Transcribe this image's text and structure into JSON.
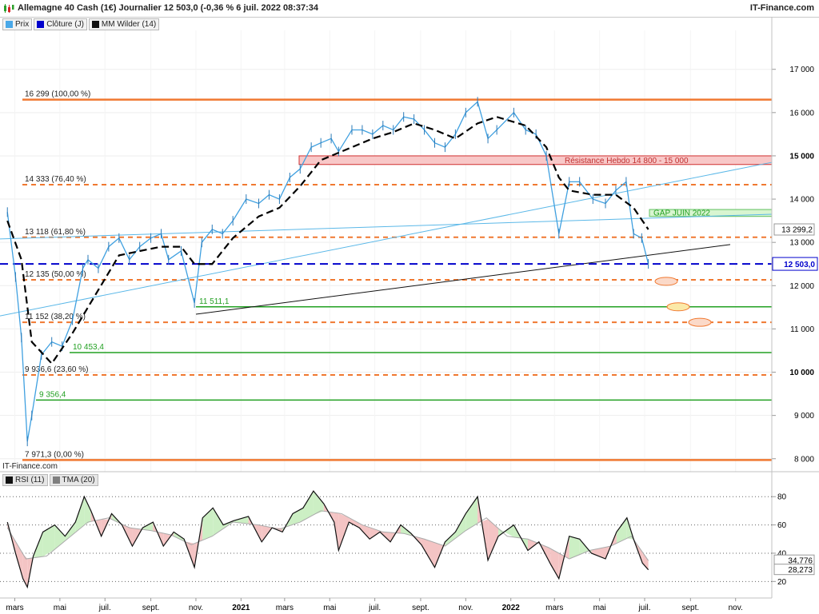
{
  "header": {
    "title": "Allemagne 40 Cash (1€) Journalier 12 503,0 (-0,36 % 6 juil. 2022 08:37:34",
    "brand": "IT-Finance.com"
  },
  "legend": [
    {
      "label": "Prix",
      "color": "#4aa8e8"
    },
    {
      "label": "Clôture (J)",
      "color": "#0000cc"
    },
    {
      "label": "MM Wilder (14)",
      "color": "#111111"
    }
  ],
  "watermark": "IT-Finance.com",
  "rsi_legend": [
    {
      "label": "RSI (11)",
      "color": "#111111"
    },
    {
      "label": "TMA (20)",
      "color": "#7f7f7f"
    }
  ],
  "colors": {
    "fib": "#f07830",
    "support": "#22a022",
    "close_line": "#0000cc",
    "trend": "#5bb8e8",
    "wilder": "#000000",
    "resistance_fill": "#f8c8c8",
    "gap_fill": "#d8f5d0"
  },
  "chart_data": [
    {
      "type": "line",
      "title": "Allemagne 40 Cash (1€) Journalier",
      "x_ticks": [
        "mars",
        "mai",
        "juil.",
        "sept.",
        "nov.",
        "2021",
        "mars",
        "mai",
        "juil.",
        "sept.",
        "nov.",
        "2022",
        "mars",
        "mai",
        "juil.",
        "sept.",
        "nov."
      ],
      "y_ticks": [
        8000,
        9000,
        10000,
        11000,
        12000,
        13000,
        14000,
        15000,
        16000,
        17000
      ],
      "ylim": [
        7700,
        17900
      ],
      "last_price": "12 503,0",
      "wilder_value": "13 299,2",
      "fibonacci_levels": [
        {
          "label": "16 299 (100,00 %)",
          "value": 16299
        },
        {
          "label": "14 333 (76,40 %)",
          "value": 14333
        },
        {
          "label": "13 118 (61,80 %)",
          "value": 13118
        },
        {
          "label": "12 135 (50,00 %)",
          "value": 12135
        },
        {
          "label": "11 152 (38,20 %)",
          "value": 11152
        },
        {
          "label": "9 936,6 (23,60 %)",
          "value": 9936.6
        },
        {
          "label": "7 971,3 (0,00 %)",
          "value": 7971.3
        }
      ],
      "support_levels": [
        {
          "label": "11 511,1",
          "value": 11511.1
        },
        {
          "label": "10 453,4",
          "value": 10453.4
        },
        {
          "label": "9 356,4",
          "value": 9356.4
        }
      ],
      "zones": [
        {
          "label": "Résistance Hebdo 14 800 - 15 000",
          "low": 14800,
          "high": 15000
        },
        {
          "label": "GAP JUIN 2022",
          "low": 13600,
          "high": 13760
        }
      ],
      "series": [
        {
          "name": "Prix",
          "dates": [
            "2020-02-20",
            "2020-03-02",
            "2020-03-10",
            "2020-03-18",
            "2020-03-24",
            "2020-04-06",
            "2020-04-20",
            "2020-05-04",
            "2020-05-18",
            "2020-06-01",
            "2020-06-08",
            "2020-06-22",
            "2020-07-06",
            "2020-07-20",
            "2020-08-03",
            "2020-08-17",
            "2020-09-01",
            "2020-09-15",
            "2020-09-25",
            "2020-10-12",
            "2020-10-30",
            "2020-11-09",
            "2020-11-23",
            "2020-12-07",
            "2020-12-21",
            "2021-01-08",
            "2021-01-25",
            "2021-02-08",
            "2021-02-22",
            "2021-03-08",
            "2021-03-22",
            "2021-04-06",
            "2021-04-19",
            "2021-05-03",
            "2021-05-13",
            "2021-05-31",
            "2021-06-14",
            "2021-06-28",
            "2021-07-12",
            "2021-07-26",
            "2021-08-09",
            "2021-08-23",
            "2021-09-06",
            "2021-09-20",
            "2021-10-04",
            "2021-10-18",
            "2021-11-01",
            "2021-11-17",
            "2021-12-01",
            "2021-12-13",
            "2022-01-05",
            "2022-01-21",
            "2022-02-04",
            "2022-02-18",
            "2022-03-07",
            "2022-03-21",
            "2022-04-04",
            "2022-04-22",
            "2022-05-09",
            "2022-05-23",
            "2022-06-06",
            "2022-06-16",
            "2022-06-27",
            "2022-07-06"
          ],
          "values": [
            13700,
            12200,
            10800,
            8400,
            9000,
            10400,
            10700,
            10600,
            11200,
            12400,
            12600,
            12400,
            12900,
            13100,
            12600,
            12900,
            13100,
            13200,
            12600,
            12800,
            11600,
            13000,
            13300,
            13200,
            13500,
            14000,
            13900,
            14100,
            14000,
            14500,
            14700,
            15200,
            15300,
            15400,
            15100,
            15600,
            15600,
            15500,
            15700,
            15600,
            15900,
            15850,
            15600,
            15300,
            15200,
            15500,
            16000,
            16250,
            15400,
            15600,
            16000,
            15600,
            15500,
            15000,
            13200,
            14400,
            14400,
            14000,
            13900,
            14200,
            14400,
            13200,
            13100,
            12503
          ]
        },
        {
          "name": "MM Wilder (14)",
          "dates": [
            "2020-02-20",
            "2020-03-10",
            "2020-03-24",
            "2020-04-20",
            "2020-05-18",
            "2020-06-22",
            "2020-07-20",
            "2020-08-17",
            "2020-09-15",
            "2020-10-12",
            "2020-10-30",
            "2020-11-23",
            "2020-12-21",
            "2021-01-25",
            "2021-02-22",
            "2021-03-22",
            "2021-04-19",
            "2021-05-31",
            "2021-06-28",
            "2021-07-26",
            "2021-08-23",
            "2021-09-20",
            "2021-10-18",
            "2021-11-17",
            "2021-12-13",
            "2022-01-21",
            "2022-02-18",
            "2022-03-07",
            "2022-03-21",
            "2022-04-22",
            "2022-05-23",
            "2022-06-16",
            "2022-07-06"
          ],
          "values": [
            13500,
            12600,
            10700,
            10200,
            10900,
            11900,
            12700,
            12800,
            12900,
            12900,
            12500,
            12500,
            13100,
            13600,
            13800,
            14300,
            14900,
            15200,
            15400,
            15550,
            15750,
            15600,
            15400,
            15750,
            15900,
            15700,
            15200,
            14500,
            14200,
            14100,
            14100,
            13800,
            13299
          ]
        }
      ]
    },
    {
      "type": "line",
      "title": "RSI (11)",
      "y_ticks": [
        20,
        40,
        60,
        80
      ],
      "ylim": [
        10,
        92
      ],
      "last_rsi": "28,273",
      "last_tma": "34,776",
      "series": [
        {
          "name": "RSI (11)",
          "dates": [
            "2020-02-20",
            "2020-03-02",
            "2020-03-12",
            "2020-03-18",
            "2020-03-26",
            "2020-04-08",
            "2020-04-24",
            "2020-05-08",
            "2020-05-22",
            "2020-06-03",
            "2020-06-12",
            "2020-06-26",
            "2020-07-10",
            "2020-07-24",
            "2020-08-07",
            "2020-08-21",
            "2020-09-04",
            "2020-09-18",
            "2020-10-02",
            "2020-10-16",
            "2020-10-30",
            "2020-11-10",
            "2020-11-24",
            "2020-12-08",
            "2020-12-22",
            "2021-01-11",
            "2021-01-29",
            "2021-02-12",
            "2021-02-26",
            "2021-03-12",
            "2021-03-26",
            "2021-04-09",
            "2021-04-23",
            "2021-05-07",
            "2021-05-13",
            "2021-05-27",
            "2021-06-10",
            "2021-06-24",
            "2021-07-08",
            "2021-07-22",
            "2021-08-05",
            "2021-08-19",
            "2021-09-02",
            "2021-09-20",
            "2021-10-04",
            "2021-10-18",
            "2021-11-01",
            "2021-11-17",
            "2021-12-01",
            "2021-12-15",
            "2022-01-05",
            "2022-01-24",
            "2022-02-08",
            "2022-02-24",
            "2022-03-07",
            "2022-03-21",
            "2022-04-04",
            "2022-04-20",
            "2022-05-09",
            "2022-05-24",
            "2022-06-07",
            "2022-06-16",
            "2022-06-28",
            "2022-07-06"
          ],
          "values": [
            62,
            40,
            22,
            16,
            38,
            55,
            60,
            52,
            62,
            80,
            70,
            52,
            68,
            60,
            45,
            58,
            62,
            45,
            55,
            50,
            30,
            65,
            72,
            60,
            63,
            66,
            48,
            58,
            55,
            68,
            72,
            84,
            75,
            62,
            42,
            62,
            58,
            50,
            55,
            48,
            60,
            54,
            46,
            30,
            48,
            55,
            68,
            80,
            35,
            52,
            60,
            42,
            48,
            32,
            22,
            52,
            50,
            40,
            36,
            55,
            65,
            50,
            33,
            28.273
          ]
        },
        {
          "name": "TMA (20)",
          "dates": [
            "2020-02-20",
            "2020-03-16",
            "2020-04-13",
            "2020-05-11",
            "2020-06-08",
            "2020-07-06",
            "2020-08-03",
            "2020-09-01",
            "2020-09-28",
            "2020-10-26",
            "2020-11-23",
            "2020-12-21",
            "2021-01-25",
            "2021-02-22",
            "2021-03-22",
            "2021-04-19",
            "2021-05-17",
            "2021-06-14",
            "2021-07-12",
            "2021-08-09",
            "2021-09-06",
            "2021-10-04",
            "2021-11-01",
            "2021-11-29",
            "2021-12-27",
            "2022-01-24",
            "2022-02-21",
            "2022-03-21",
            "2022-04-18",
            "2022-05-16",
            "2022-06-13",
            "2022-07-06"
          ],
          "values": [
            58,
            36,
            38,
            50,
            62,
            65,
            58,
            56,
            53,
            46,
            52,
            62,
            60,
            57,
            62,
            70,
            68,
            60,
            55,
            54,
            50,
            45,
            56,
            65,
            52,
            50,
            44,
            36,
            42,
            45,
            52,
            34.776
          ]
        }
      ]
    }
  ]
}
